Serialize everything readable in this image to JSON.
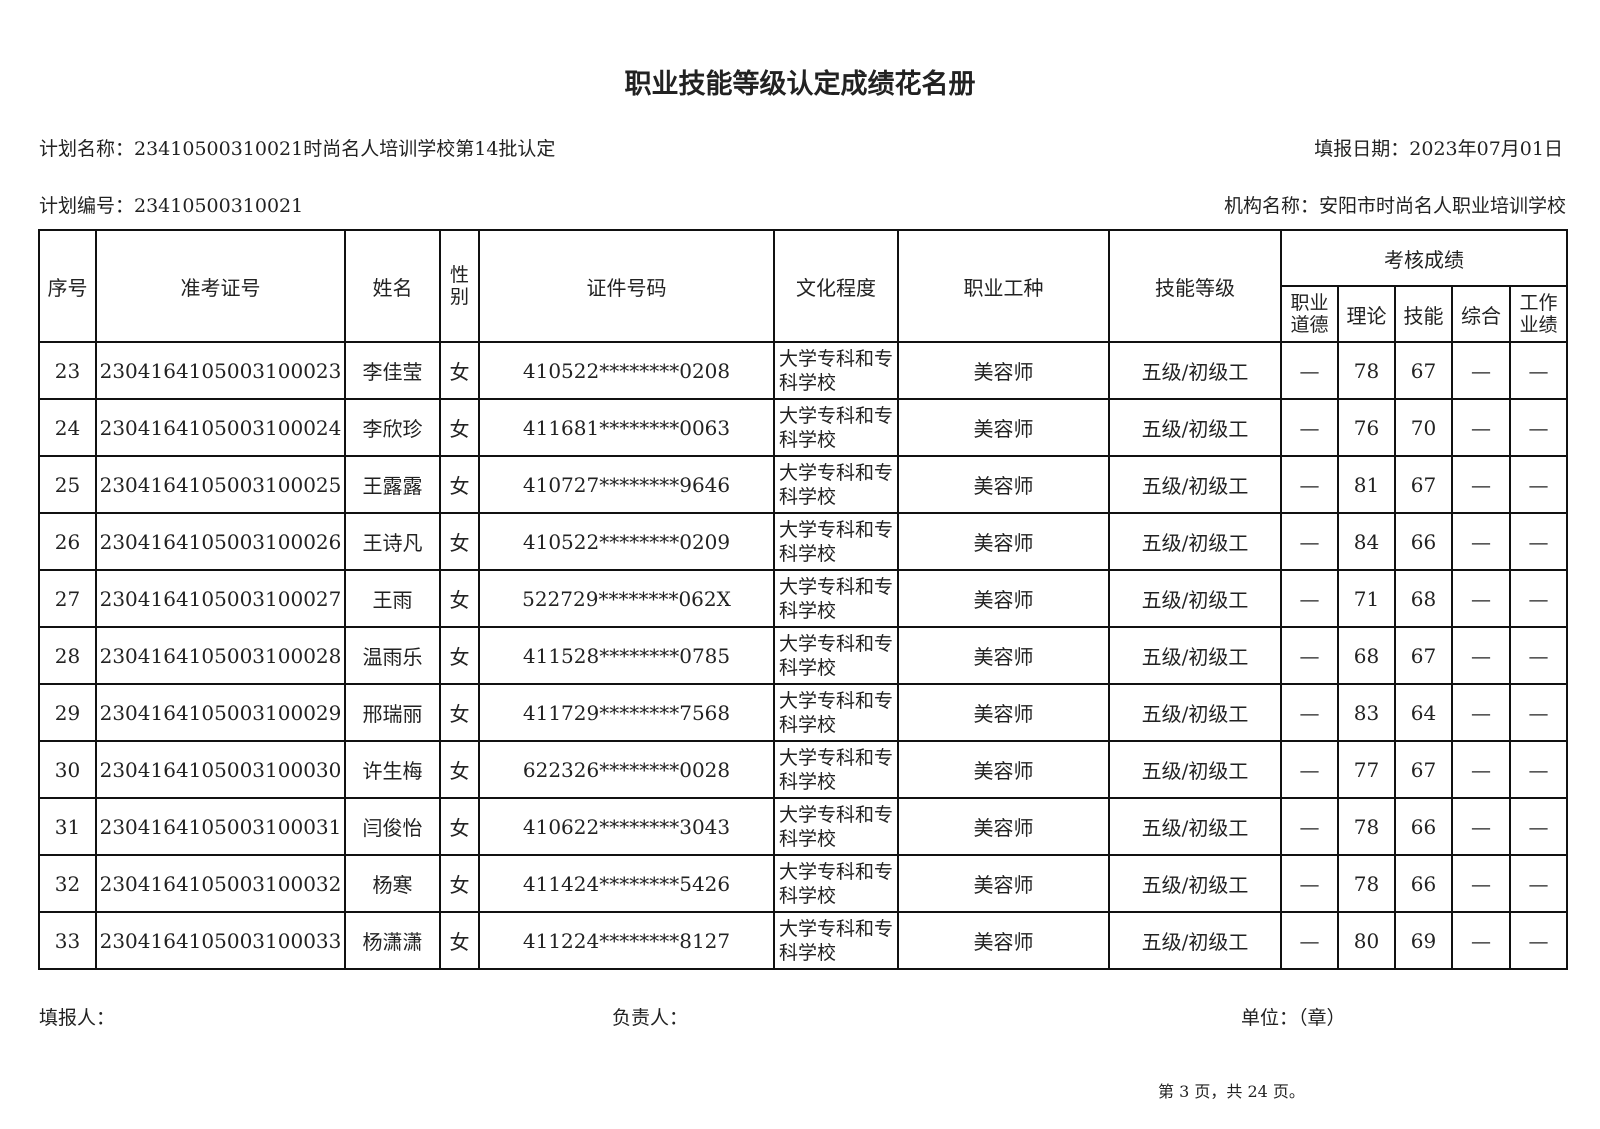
{
  "title": "职业技能等级认定成绩花名册",
  "plan_name": "计划名称：23410500310021时尚名人培训学校第14批认定",
  "report_date": "填报日期：2023年07月01日",
  "plan_number": "计划编号：23410500310021",
  "org_name": "机构名称：安阳市时尚名人职业培训学校",
  "headers": {
    "seq": "序号",
    "exam_no": "准考证号",
    "name": "姓名",
    "gender": "性别",
    "id_no": "证件号码",
    "education": "文化程度",
    "occupation": "职业工种",
    "level": "技能等级",
    "scores": "考核成绩",
    "ethics": "职业道德",
    "theory": "理论",
    "skill": "技能",
    "overall": "综合",
    "performance": "工作业绩"
  },
  "rows": [
    {
      "seq": "23",
      "exam_no": "2304164105003100023",
      "name": "李佳莹",
      "gender": "女",
      "id_no": "410522********0208",
      "education": "大学专科和专科学校",
      "occupation": "美容师",
      "level": "五级/初级工",
      "ethics": "—",
      "theory": "78",
      "skill": "67",
      "overall": "—",
      "performance": "—"
    },
    {
      "seq": "24",
      "exam_no": "2304164105003100024",
      "name": "李欣珍",
      "gender": "女",
      "id_no": "411681********0063",
      "education": "大学专科和专科学校",
      "occupation": "美容师",
      "level": "五级/初级工",
      "ethics": "—",
      "theory": "76",
      "skill": "70",
      "overall": "—",
      "performance": "—"
    },
    {
      "seq": "25",
      "exam_no": "2304164105003100025",
      "name": "王露露",
      "gender": "女",
      "id_no": "410727********9646",
      "education": "大学专科和专科学校",
      "occupation": "美容师",
      "level": "五级/初级工",
      "ethics": "—",
      "theory": "81",
      "skill": "67",
      "overall": "—",
      "performance": "—"
    },
    {
      "seq": "26",
      "exam_no": "2304164105003100026",
      "name": "王诗凡",
      "gender": "女",
      "id_no": "410522********0209",
      "education": "大学专科和专科学校",
      "occupation": "美容师",
      "level": "五级/初级工",
      "ethics": "—",
      "theory": "84",
      "skill": "66",
      "overall": "—",
      "performance": "—"
    },
    {
      "seq": "27",
      "exam_no": "2304164105003100027",
      "name": "王雨",
      "gender": "女",
      "id_no": "522729********062X",
      "education": "大学专科和专科学校",
      "occupation": "美容师",
      "level": "五级/初级工",
      "ethics": "—",
      "theory": "71",
      "skill": "68",
      "overall": "—",
      "performance": "—"
    },
    {
      "seq": "28",
      "exam_no": "2304164105003100028",
      "name": "温雨乐",
      "gender": "女",
      "id_no": "411528********0785",
      "education": "大学专科和专科学校",
      "occupation": "美容师",
      "level": "五级/初级工",
      "ethics": "—",
      "theory": "68",
      "skill": "67",
      "overall": "—",
      "performance": "—"
    },
    {
      "seq": "29",
      "exam_no": "2304164105003100029",
      "name": "邢瑞丽",
      "gender": "女",
      "id_no": "411729********7568",
      "education": "大学专科和专科学校",
      "occupation": "美容师",
      "level": "五级/初级工",
      "ethics": "—",
      "theory": "83",
      "skill": "64",
      "overall": "—",
      "performance": "—"
    },
    {
      "seq": "30",
      "exam_no": "2304164105003100030",
      "name": "许生梅",
      "gender": "女",
      "id_no": "622326********0028",
      "education": "大学专科和专科学校",
      "occupation": "美容师",
      "level": "五级/初级工",
      "ethics": "—",
      "theory": "77",
      "skill": "67",
      "overall": "—",
      "performance": "—"
    },
    {
      "seq": "31",
      "exam_no": "2304164105003100031",
      "name": "闫俊怡",
      "gender": "女",
      "id_no": "410622********3043",
      "education": "大学专科和专科学校",
      "occupation": "美容师",
      "level": "五级/初级工",
      "ethics": "—",
      "theory": "78",
      "skill": "66",
      "overall": "—",
      "performance": "—"
    },
    {
      "seq": "32",
      "exam_no": "2304164105003100032",
      "name": "杨寒",
      "gender": "女",
      "id_no": "411424********5426",
      "education": "大学专科和专科学校",
      "occupation": "美容师",
      "level": "五级/初级工",
      "ethics": "—",
      "theory": "78",
      "skill": "66",
      "overall": "—",
      "performance": "—"
    },
    {
      "seq": "33",
      "exam_no": "2304164105003100033",
      "name": "杨潇潇",
      "gender": "女",
      "id_no": "411224********8127",
      "education": "大学专科和专科学校",
      "occupation": "美容师",
      "level": "五级/初级工",
      "ethics": "—",
      "theory": "80",
      "skill": "69",
      "overall": "—",
      "performance": "—"
    }
  ],
  "footer": {
    "filler": "填报人：",
    "manager": "负责人：",
    "unit": "单位：（章）",
    "page_info": "第 3 页，共 24 页。"
  }
}
